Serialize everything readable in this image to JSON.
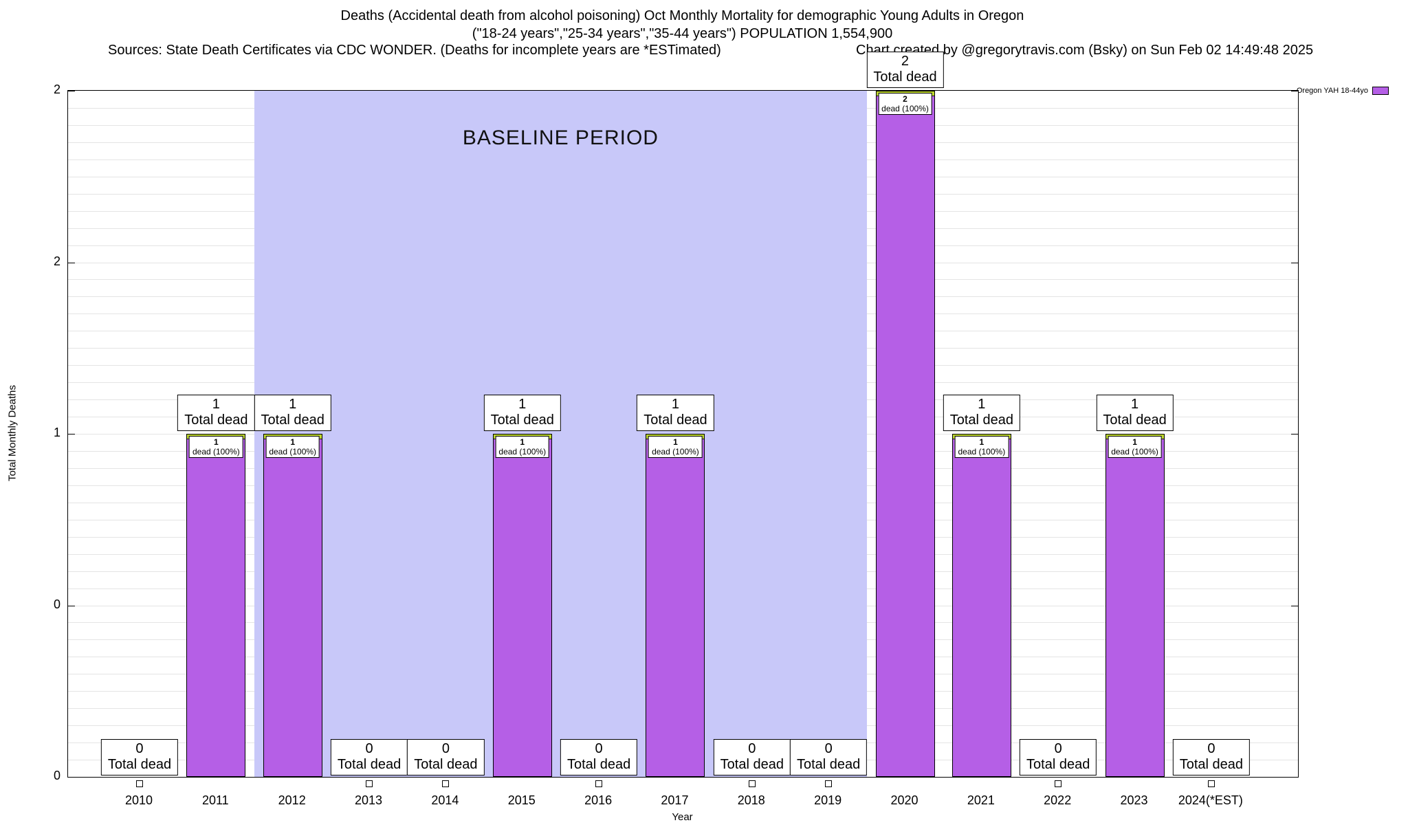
{
  "titles": {
    "line1": "Deaths (Accidental death from alcohol poisoning) Oct Monthly Mortality for demographic Young Adults in Oregon",
    "line2": "(\"18-24 years\",\"25-34 years\",\"35-44 years\") POPULATION 1,554,900",
    "sources": "Sources: State Death Certificates via CDC WONDER. (Deaths for incomplete years are *ESTimated)",
    "credit": "Chart created by @gregorytravis.com (Bsky) on Sun Feb 02 14:49:48 2025"
  },
  "chart_data": {
    "type": "bar",
    "title": "Deaths (Accidental death from alcohol poisoning) Oct Monthly Mortality for demographic Young Adults in Oregon",
    "xlabel": "Year",
    "ylabel": "Total Monthly Deaths",
    "ylim": [
      0,
      2
    ],
    "grid": true,
    "legend_position": "top-right",
    "categories": [
      "2010",
      "2011",
      "2012",
      "2013",
      "2014",
      "2015",
      "2016",
      "2017",
      "2018",
      "2019",
      "2020",
      "2021",
      "2022",
      "2023",
      "2024(*EST)"
    ],
    "values": [
      0,
      1,
      1,
      0,
      0,
      1,
      0,
      1,
      0,
      0,
      2,
      1,
      0,
      1,
      0
    ],
    "yticks": [
      {
        "v": 0,
        "label": "0"
      },
      {
        "v": 0.5,
        "label": "0"
      },
      {
        "v": 1,
        "label": "1"
      },
      {
        "v": 1.5,
        "label": "2"
      },
      {
        "v": 2,
        "label": "2"
      }
    ],
    "annotations": {
      "total_label": "Total dead",
      "dead_label": "dead (100%)"
    },
    "baseline": {
      "label": "BASELINE PERIOD",
      "start_category": "2012",
      "end_category": "2019",
      "start_index": 1.5,
      "end_index": 9.5,
      "color": "#c8c8f9"
    },
    "legend": [
      {
        "label": "Oregon YAH 18-44yo",
        "color": "#b55fe6"
      }
    ],
    "bar_color": "#b55fe6",
    "bar_top_strip_color": "#bdd62e"
  }
}
